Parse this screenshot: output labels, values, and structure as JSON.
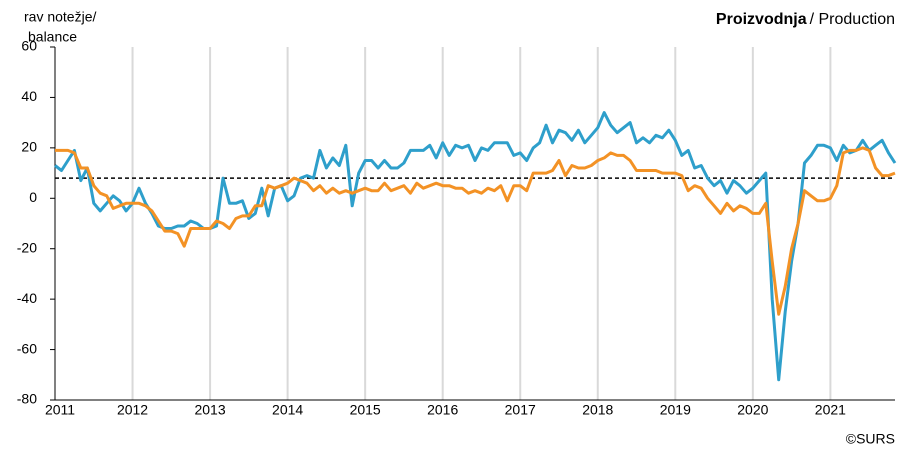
{
  "chart_data": {
    "type": "line",
    "title": "Proizvodnja",
    "subtitle": "/ Production",
    "y_label": [
      "rav notežje/",
      "balance"
    ],
    "source": "©SURS",
    "categories": [
      "2011",
      null,
      null,
      null,
      null,
      null,
      null,
      null,
      null,
      null,
      null,
      null,
      "2012",
      null,
      null,
      null,
      null,
      null,
      null,
      null,
      null,
      null,
      null,
      null,
      "2013",
      null,
      null,
      null,
      null,
      null,
      null,
      null,
      null,
      null,
      null,
      null,
      "2014",
      null,
      null,
      null,
      null,
      null,
      null,
      null,
      null,
      null,
      null,
      null,
      "2015",
      null,
      null,
      null,
      null,
      null,
      null,
      null,
      null,
      null,
      null,
      null,
      "2016",
      null,
      null,
      null,
      null,
      null,
      null,
      null,
      null,
      null,
      null,
      null,
      "2017",
      null,
      null,
      null,
      null,
      null,
      null,
      null,
      null,
      null,
      null,
      null,
      "2018",
      null,
      null,
      null,
      null,
      null,
      null,
      null,
      null,
      null,
      null,
      null,
      "2019",
      null,
      null,
      null,
      null,
      null,
      null,
      null,
      null,
      null,
      null,
      null,
      "2020",
      null,
      null,
      null,
      null,
      null,
      null,
      null,
      null,
      null,
      null,
      null,
      "2021",
      null,
      null,
      null,
      null,
      null,
      null,
      null,
      null,
      null,
      null
    ],
    "series": [
      {
        "color": "#2e9fcb",
        "values": [
          13,
          11,
          15,
          19,
          7,
          12,
          -2,
          -5,
          -2,
          1,
          -1,
          -5,
          -2,
          4,
          -2,
          -6,
          -11,
          -12,
          -12,
          -11,
          -11,
          -9,
          -10,
          -12,
          -12,
          -11,
          8,
          -2,
          -2,
          -1,
          -8,
          -6,
          4,
          -7,
          4,
          5,
          -1,
          1,
          8,
          9,
          8,
          19,
          12,
          16,
          13,
          21,
          -3,
          10,
          15,
          15,
          12,
          15,
          12,
          12,
          14,
          19,
          19,
          19,
          21,
          16,
          22,
          17,
          21,
          20,
          21,
          15,
          20,
          19,
          22,
          22,
          22,
          17,
          18,
          15,
          20,
          22,
          29,
          22,
          27,
          26,
          23,
          27,
          22,
          25,
          28,
          34,
          29,
          26,
          28,
          30,
          22,
          24,
          22,
          25,
          24,
          27,
          23,
          17,
          19,
          12,
          13,
          8,
          5,
          7,
          2,
          7,
          5,
          2,
          4,
          7,
          10,
          -40,
          -72,
          -45,
          -25,
          -10,
          14,
          17,
          21,
          21,
          20,
          15,
          21,
          18,
          19,
          23,
          19,
          21,
          23,
          18,
          14
        ]
      },
      {
        "color": "#f39225",
        "values": [
          19,
          19,
          19,
          18,
          12,
          12,
          5,
          2,
          1,
          -4,
          -3,
          -2,
          -2,
          -2,
          -3,
          -5,
          -9,
          -13,
          -13,
          -14,
          -19,
          -12,
          -12,
          -12,
          -12,
          -9,
          -10,
          -12,
          -8,
          -7,
          -7,
          -3,
          -3,
          5,
          4,
          5,
          6,
          8,
          7,
          6,
          3,
          5,
          2,
          4,
          2,
          3,
          2,
          3,
          4,
          3,
          3,
          6,
          3,
          4,
          5,
          2,
          6,
          4,
          5,
          6,
          5,
          5,
          4,
          4,
          2,
          3,
          2,
          4,
          3,
          5,
          -1,
          5,
          5,
          3,
          10,
          10,
          10,
          11,
          15,
          9,
          13,
          12,
          12,
          13,
          15,
          16,
          18,
          17,
          17,
          15,
          11,
          11,
          11,
          11,
          10,
          10,
          10,
          9,
          3,
          5,
          4,
          0,
          -3,
          -6,
          -2,
          -5,
          -3,
          -4,
          -6,
          -6,
          -2,
          -25,
          -46,
          -35,
          -20,
          -10,
          3,
          1,
          -1,
          -1,
          0,
          5,
          18,
          19,
          19,
          20,
          19,
          12,
          9,
          9,
          10
        ]
      }
    ],
    "hline": 8,
    "ylim": [
      -80,
      60
    ],
    "yticks": [
      -80,
      -60,
      -40,
      -20,
      0,
      20,
      40,
      60
    ],
    "grid": true
  }
}
